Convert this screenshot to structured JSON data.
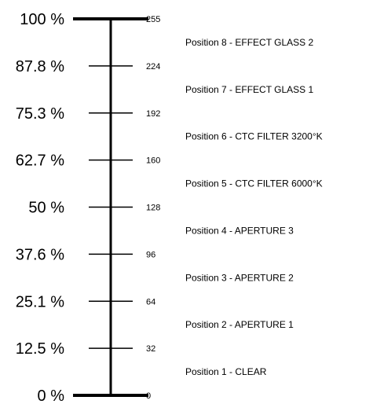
{
  "scale": {
    "ticks": [
      {
        "percent": "0 %",
        "dmx": "0"
      },
      {
        "percent": "12.5 %",
        "dmx": "32"
      },
      {
        "percent": "25.1 %",
        "dmx": "64"
      },
      {
        "percent": "37.6 %",
        "dmx": "96"
      },
      {
        "percent": "50 %",
        "dmx": "128"
      },
      {
        "percent": "62.7 %",
        "dmx": "160"
      },
      {
        "percent": "75.3 %",
        "dmx": "192"
      },
      {
        "percent": "87.8 %",
        "dmx": "224"
      },
      {
        "percent": "100 %",
        "dmx": "255"
      }
    ],
    "positions": [
      "Position 1 - CLEAR",
      "Position 2 - APERTURE 1",
      "Position 3 - APERTURE 2",
      "Position 4 - APERTURE 3",
      "Position 5 - CTC FILTER 6000°K",
      "Position 6 - CTC FILTER 3200°K",
      "Position 7 - EFFECT GLASS 1",
      "Position 8 - EFFECT GLASS 2"
    ]
  }
}
